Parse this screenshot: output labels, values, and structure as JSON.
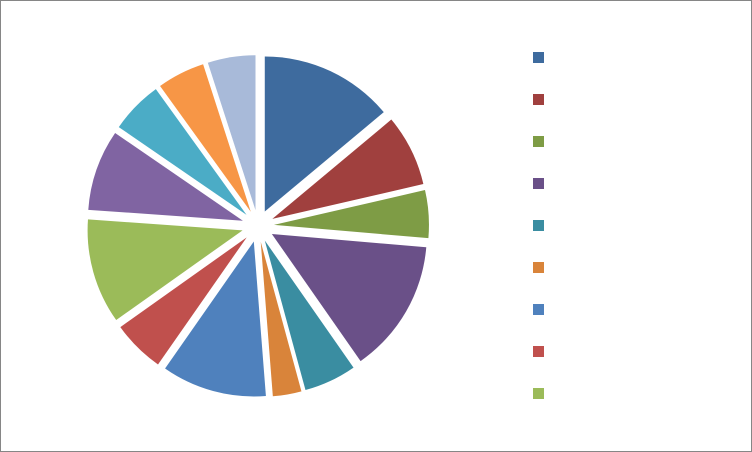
{
  "chart_data": {
    "type": "pie",
    "categories": [
      null,
      null,
      null,
      null,
      null,
      null,
      null,
      null,
      null,
      null,
      null,
      null,
      null
    ],
    "values": [
      14,
      7.5,
      5,
      14,
      5.5,
      3,
      11,
      5.5,
      11,
      8.5,
      5.5,
      5,
      5
    ],
    "colors": [
      "#3E6B9E",
      "#A0403E",
      "#7E9C45",
      "#6A5088",
      "#3A8DA1",
      "#D9843A",
      "#4F81BD",
      "#C0504D",
      "#9BBB59",
      "#8064A2",
      "#4BACC6",
      "#F79646",
      "#A8BAD9"
    ],
    "exploded": true,
    "legend": "right"
  }
}
